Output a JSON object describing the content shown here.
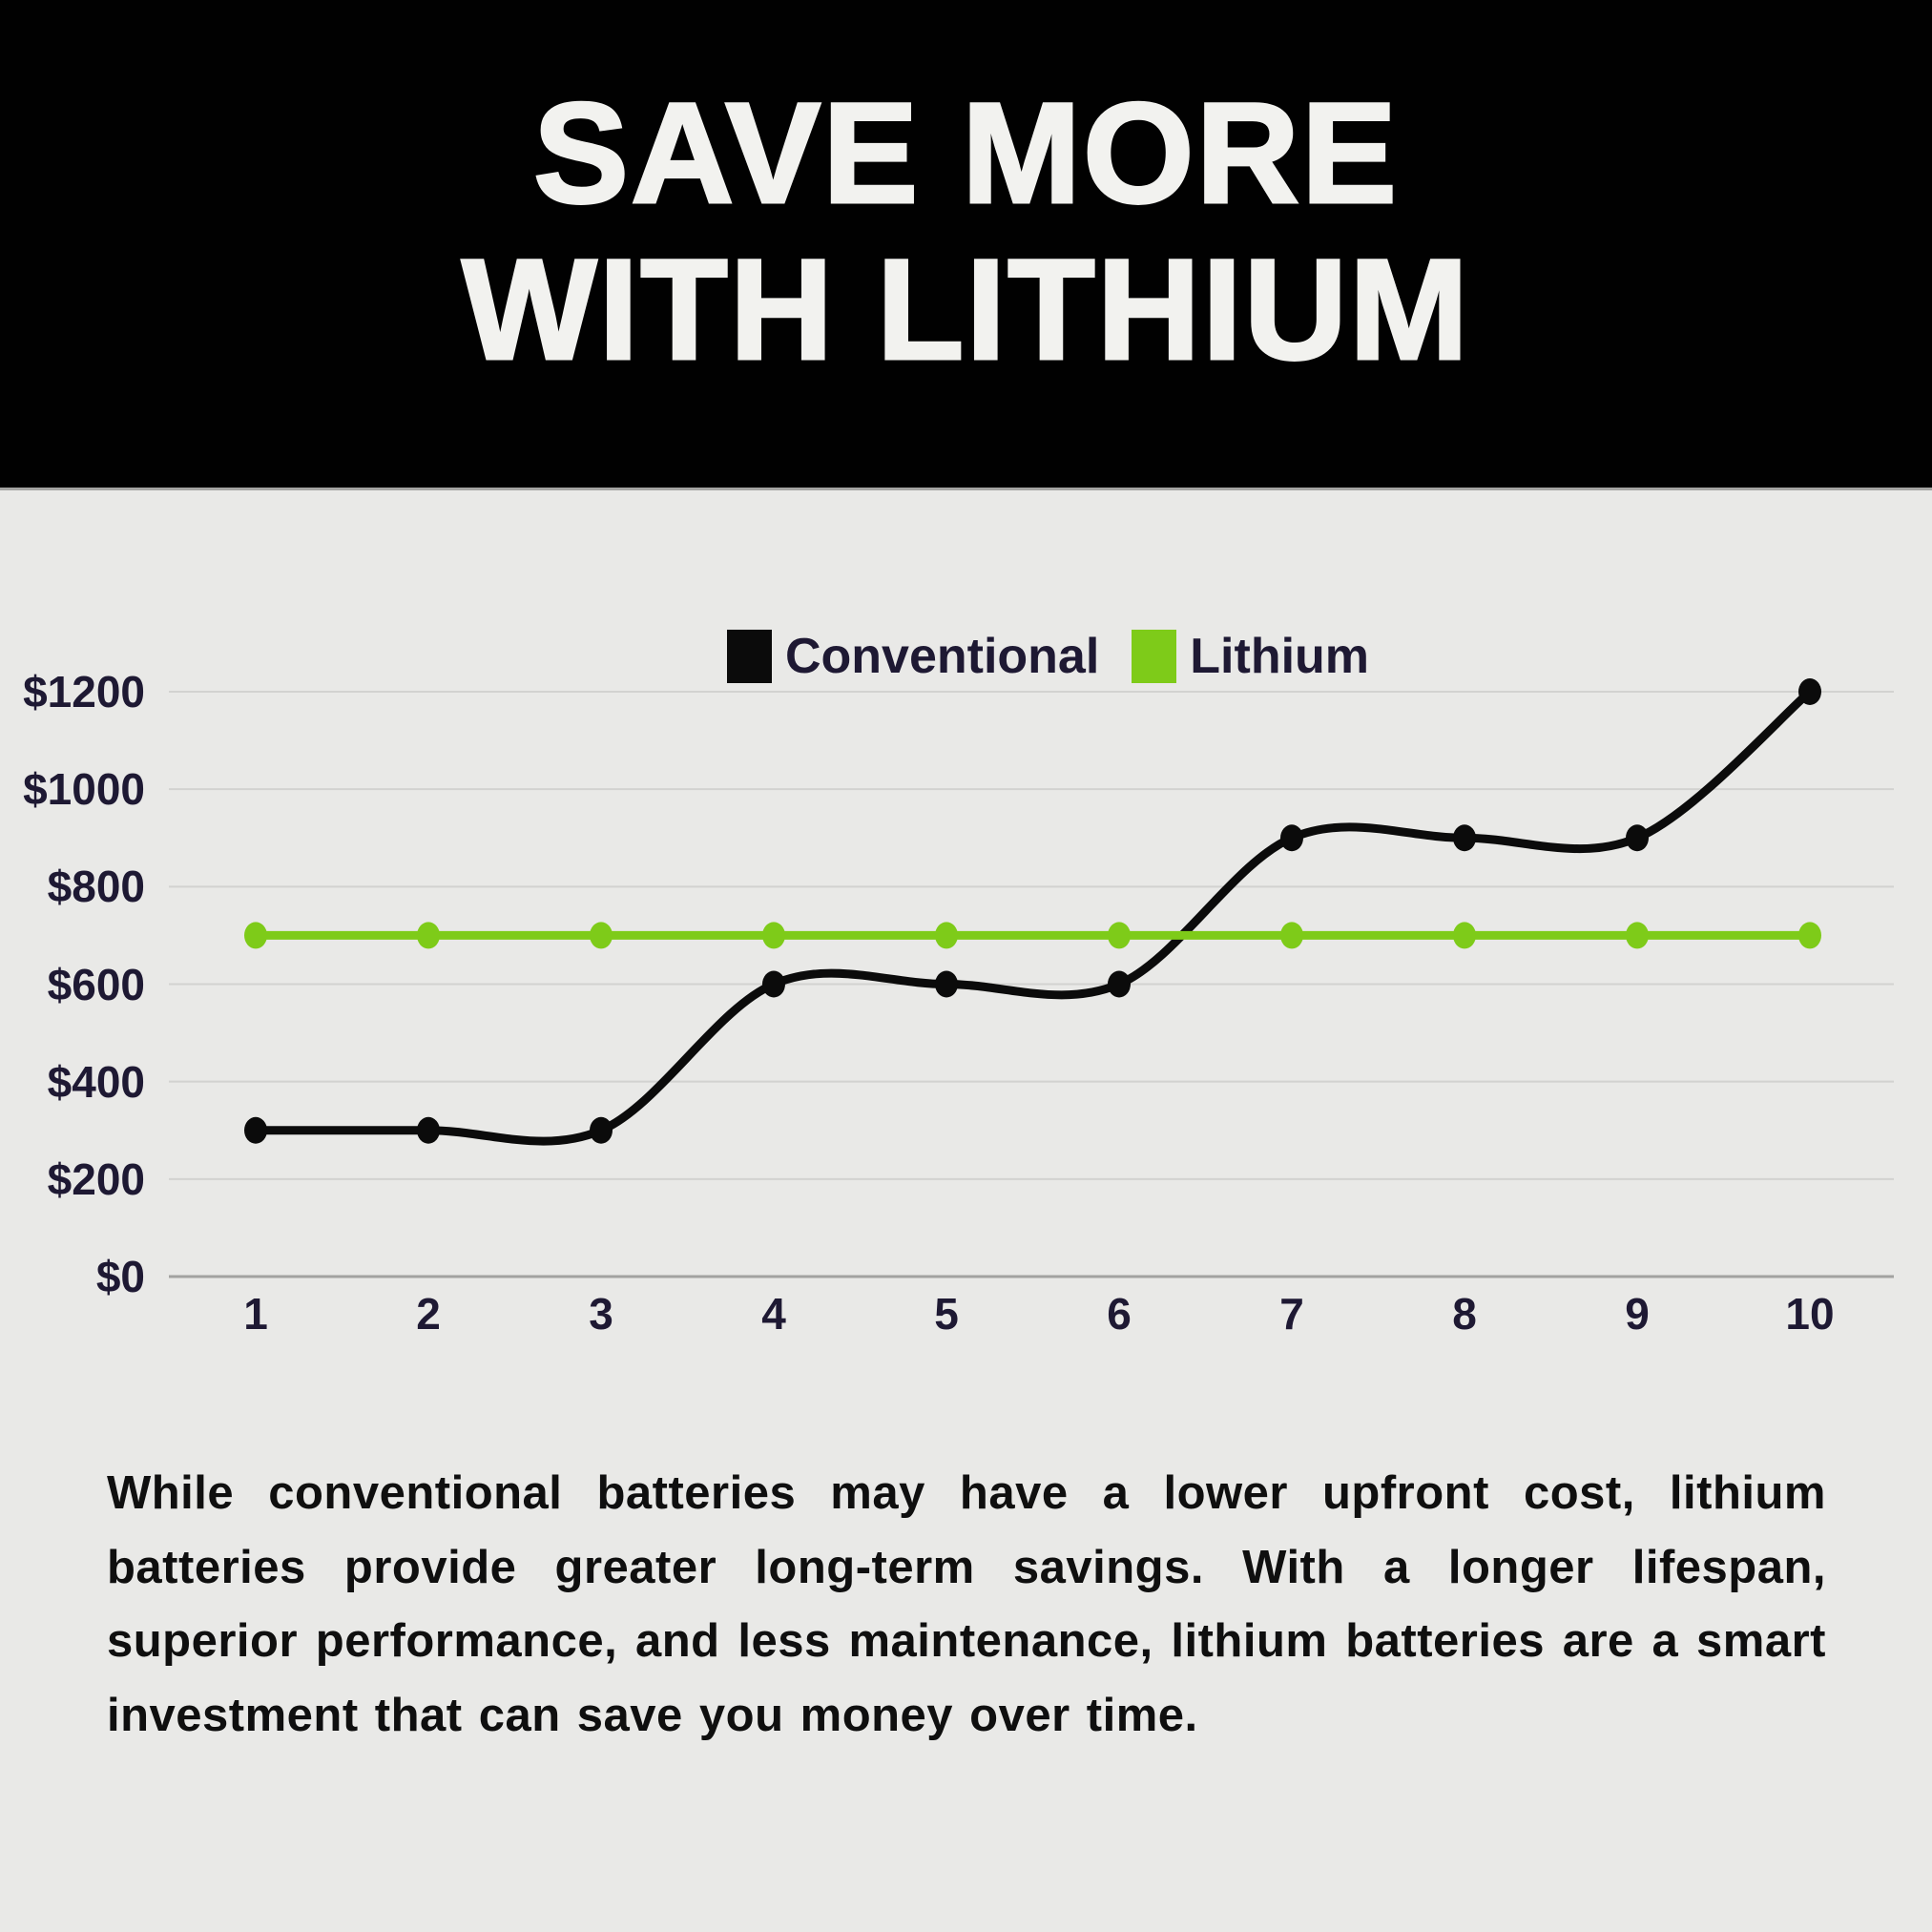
{
  "page": {
    "background": "#e9e9e7"
  },
  "header": {
    "background": "#010101",
    "title_line1": "SAVE MORE",
    "title_line2": "WITH LITHIUM",
    "title_color": "#f2f2ef"
  },
  "legend": {
    "text_color": "#1e1933",
    "items": [
      {
        "label": "Conventional",
        "color": "#0b0b0b"
      },
      {
        "label": "Lithium",
        "color": "#7ecb19"
      }
    ]
  },
  "chart_data": {
    "type": "line",
    "x": [
      1,
      2,
      3,
      4,
      5,
      6,
      7,
      8,
      9,
      10
    ],
    "series": [
      {
        "name": "Conventional",
        "color": "#0b0b0b",
        "smooth": true,
        "values": [
          300,
          300,
          300,
          600,
          600,
          600,
          900,
          900,
          900,
          1200
        ]
      },
      {
        "name": "Lithium",
        "color": "#7ecb19",
        "smooth": false,
        "values": [
          700,
          700,
          700,
          700,
          700,
          700,
          700,
          700,
          700,
          700
        ]
      }
    ],
    "ylim": [
      0,
      1200
    ],
    "yticks": [
      {
        "value": 1200,
        "label": "$1200"
      },
      {
        "value": 1000,
        "label": "$1000"
      },
      {
        "value": 800,
        "label": "$800"
      },
      {
        "value": 600,
        "label": "$600"
      },
      {
        "value": 400,
        "label": "$400"
      },
      {
        "value": 200,
        "label": "$200"
      },
      {
        "value": 0,
        "label": "$0"
      }
    ],
    "grid": "horizontal",
    "grid_color": "#d2d2d0",
    "axis_line_color": "#a2a2a0",
    "axis_text_color": "#1e1933",
    "legend_position": "top-center",
    "xlabel": "",
    "ylabel": ""
  },
  "description": {
    "text": "While conventional batteries may have a lower upfront cost, lithium batteries provide greater long-term savings. With a longer lifespan, superior performance, and less maintenance, lithium batteries are a smart investment that can save you money over time."
  }
}
